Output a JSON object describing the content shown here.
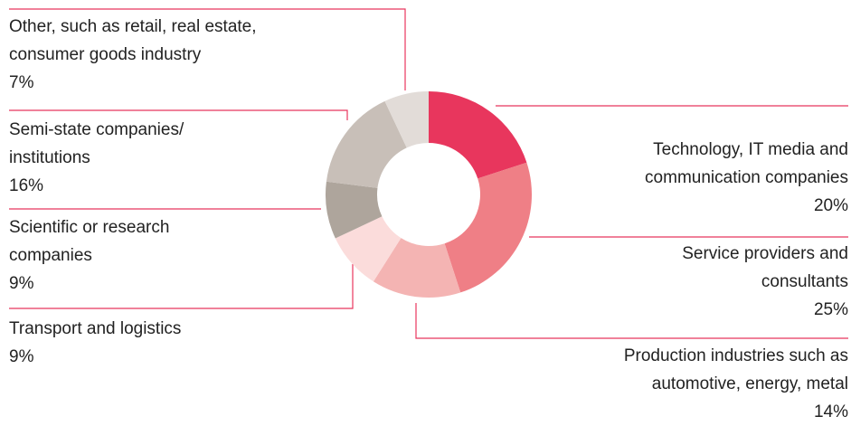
{
  "chart_data": {
    "type": "donut",
    "categories": [
      "Technology, IT media and communication companies",
      "Service providers and consultants",
      "Production industries such as automotive, energy, metal",
      "Transport and logistics",
      "Scientific or research companies",
      "Semi-state companies/ institutions",
      "Other, such as retail, real estate, consumer goods industry"
    ],
    "values": [
      20,
      25,
      14,
      9,
      9,
      16,
      7
    ],
    "value_labels": [
      "20%",
      "25%",
      "14%",
      "9%",
      "9%",
      "16%",
      "7%"
    ],
    "colors": [
      "#e8365d",
      "#ef7f86",
      "#f4b4b3",
      "#fbdcdb",
      "#aea59c",
      "#c8bfb8",
      "#e2dcd8"
    ]
  }
}
